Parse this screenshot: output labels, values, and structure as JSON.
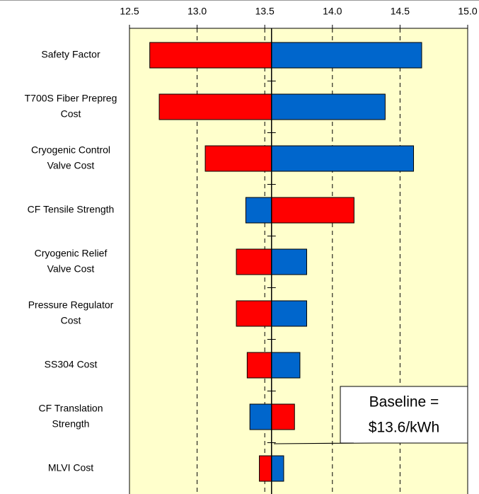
{
  "chart_data": {
    "type": "tornado",
    "categories": [
      [
        "Safety Factor"
      ],
      [
        "T700S Fiber Prepreg",
        "Cost"
      ],
      [
        "Cryogenic Control",
        "Valve Cost"
      ],
      [
        "CF Tensile Strength"
      ],
      [
        "Cryogenic Relief",
        "Valve Cost"
      ],
      [
        "Pressure Regulator",
        "Cost"
      ],
      [
        "SS304 Cost"
      ],
      [
        "CF Translation",
        "Strength"
      ],
      [
        "MLVI Cost"
      ]
    ],
    "baseline": 13.55,
    "series": [
      {
        "color": "#ff0000",
        "values": [
          12.65,
          12.72,
          13.06,
          14.16,
          13.29,
          13.29,
          13.37,
          13.72,
          13.46
        ]
      },
      {
        "color": "#0066cc",
        "values": [
          14.66,
          14.39,
          14.6,
          13.36,
          13.81,
          13.81,
          13.76,
          13.39,
          13.64
        ]
      }
    ],
    "xlim": [
      12.5,
      15
    ],
    "xticks": [
      12.5,
      {
        "value": 13,
        "label": "13.0"
      },
      13.5,
      {
        "value": 14,
        "label": "14.0"
      },
      14.5,
      {
        "value": 15,
        "label": "15.0"
      }
    ],
    "grid": true,
    "annotation": [
      "Baseline =",
      "$13.6/kWh"
    ]
  }
}
